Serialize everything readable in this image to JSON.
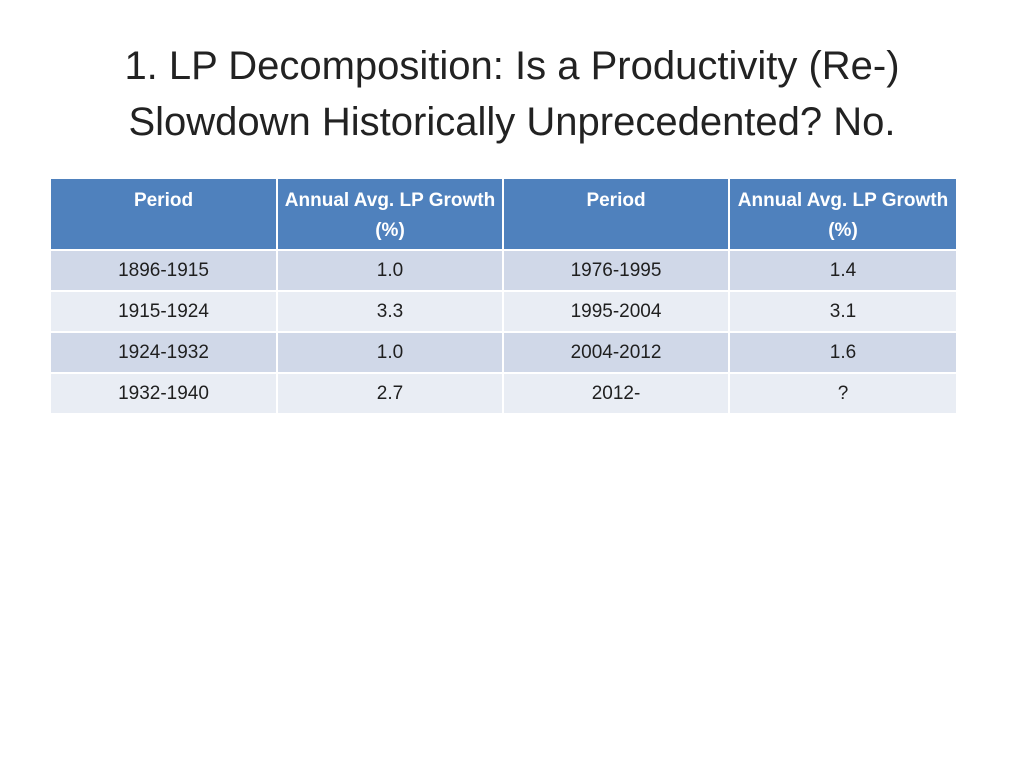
{
  "slide": {
    "title_line1": "1. LP Decomposition: Is a Productivity (Re-)",
    "title_line2": "Slowdown Historically Unprecedented?  No."
  },
  "table": {
    "headers": [
      "Period",
      "Annual Avg. LP Growth (%)",
      "Period",
      "Annual Avg. LP Growth (%)"
    ],
    "rows": [
      [
        "1896-1915",
        "1.0",
        "1976-1995",
        "1.4"
      ],
      [
        "1915-1924",
        "3.3",
        "1995-2004",
        "3.1"
      ],
      [
        "1924-1932",
        "1.0",
        "2004-2012",
        "1.6"
      ],
      [
        "1932-1940",
        "2.7",
        "2012-",
        "?"
      ]
    ]
  },
  "colors": {
    "header_background": "#4f81bd",
    "row_background_odd": "#d0d8e8",
    "row_background_even": "#e9edf4"
  }
}
